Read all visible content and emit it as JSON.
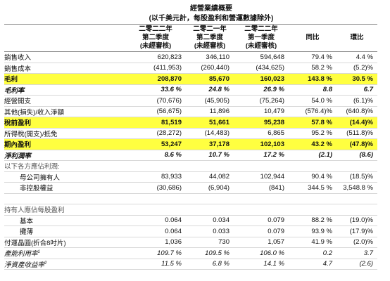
{
  "header": {
    "title": "經營業績概要",
    "subtitle": "(以千美元計，每股盈利和營運數據除外)"
  },
  "table": {
    "columns": [
      [
        "二零二二年",
        "第二季度",
        "(未經審核)"
      ],
      [
        "二零二一年",
        "第二季度",
        "(未經審核)"
      ],
      [
        "二零二二年",
        "第一季度",
        "(未經審核)"
      ],
      [
        "同比"
      ],
      [
        "環比"
      ]
    ],
    "rows": [
      {
        "label": "銷售收入",
        "cells": [
          "620,823",
          "346,110",
          "594,648",
          "79.4 %",
          "4.4 %"
        ]
      },
      {
        "label": "銷售成本",
        "cells": [
          "(411,953)",
          "(260,440)",
          "(434,625)",
          "58.2 %",
          "(5.2)%"
        ]
      },
      {
        "label": "毛利",
        "cells": [
          "208,870",
          "85,670",
          "160,023",
          "143.8 %",
          "30.5 %"
        ]
      },
      {
        "label": "毛利率",
        "cells": [
          "33.6 %",
          "24.8 %",
          "26.9 %",
          "8.8",
          "6.7"
        ]
      },
      {
        "label": "經營開支",
        "cells": [
          "(70,676)",
          "(45,905)",
          "(75,264)",
          "54.0 %",
          "(6.1)%"
        ]
      },
      {
        "label": "其他(損失)/收入淨額",
        "cells": [
          "(56,675)",
          "11,896",
          "10,479",
          "(576.4)%",
          "(640.8)%"
        ]
      },
      {
        "label": "稅前盈利",
        "cells": [
          "81,519",
          "51,661",
          "95,238",
          "57.8 %",
          "(14.4)%"
        ]
      },
      {
        "label": "所得稅(開支)/抵免",
        "cells": [
          "(28,272)",
          "(14,483)",
          "6,865",
          "95.2 %",
          "(511.8)%"
        ]
      },
      {
        "label": "期內盈利",
        "cells": [
          "53,247",
          "37,178",
          "102,103",
          "43.2 %",
          "(47.8)%"
        ]
      },
      {
        "label": "淨利潤率",
        "cells": [
          "8.6 %",
          "10.7 %",
          "17.2 %",
          "(2.1)",
          "(8.6)"
        ]
      },
      {
        "label": "以下各方應佔利潤:",
        "cells": []
      },
      {
        "label": "母公司擁有人",
        "cells": [
          "83,933",
          "44,082",
          "102,944",
          "90.4 %",
          "(18.5)%"
        ]
      },
      {
        "label": "非控股權益",
        "cells": [
          "(30,686)",
          "(6,904)",
          "(841)",
          "344.5 %",
          "3,548.8 %"
        ]
      },
      {
        "label": "持有人應佔每股盈利",
        "cells": []
      },
      {
        "label": "基本",
        "cells": [
          "0.064",
          "0.034",
          "0.079",
          "88.2 %",
          "(19.0)%"
        ]
      },
      {
        "label": "攤薄",
        "cells": [
          "0.064",
          "0.033",
          "0.079",
          "93.9 %",
          "(17.9)%"
        ]
      },
      {
        "label": "付運晶圓(折合8吋片)",
        "cells": [
          "1,036",
          "730",
          "1,057",
          "41.9 %",
          "(2.0)%"
        ]
      },
      {
        "label": "產能利用率",
        "note": "1",
        "cells": [
          "109.7 %",
          "109.5 %",
          "106.0 %",
          "0.2",
          "3.7"
        ]
      },
      {
        "label": "淨資產收益率",
        "note": "2",
        "cells": [
          "11.5 %",
          "6.8 %",
          "14.1 %",
          "4.7",
          "(2.6)"
        ]
      }
    ]
  }
}
